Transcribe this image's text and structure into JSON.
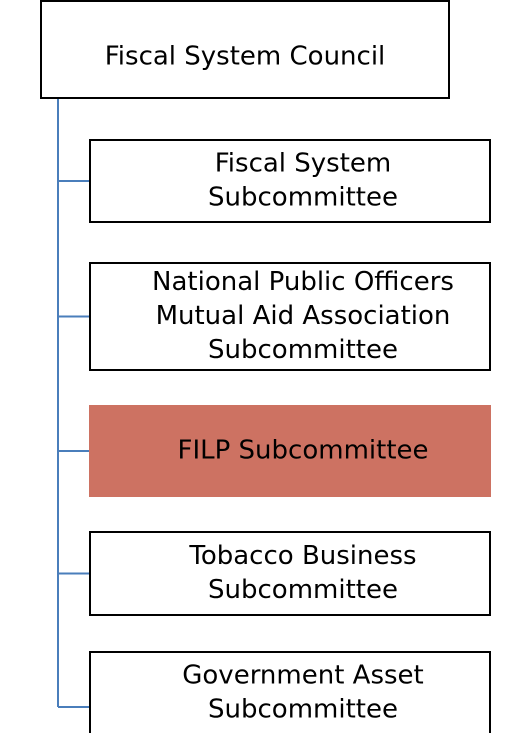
{
  "root": {
    "label": "Fiscal System Council"
  },
  "nodes": [
    {
      "lines": [
        "Fiscal System",
        "Subcommittee"
      ]
    },
    {
      "lines": [
        "National Public Officers",
        "Mutual Aid Association",
        "Subcommittee"
      ]
    },
    {
      "lines": [
        "FILP Subcommittee"
      ],
      "highlight": true
    },
    {
      "lines": [
        "Tobacco Business",
        "Subcommittee"
      ]
    },
    {
      "lines": [
        "Government Asset",
        "Subcommittee"
      ]
    }
  ]
}
